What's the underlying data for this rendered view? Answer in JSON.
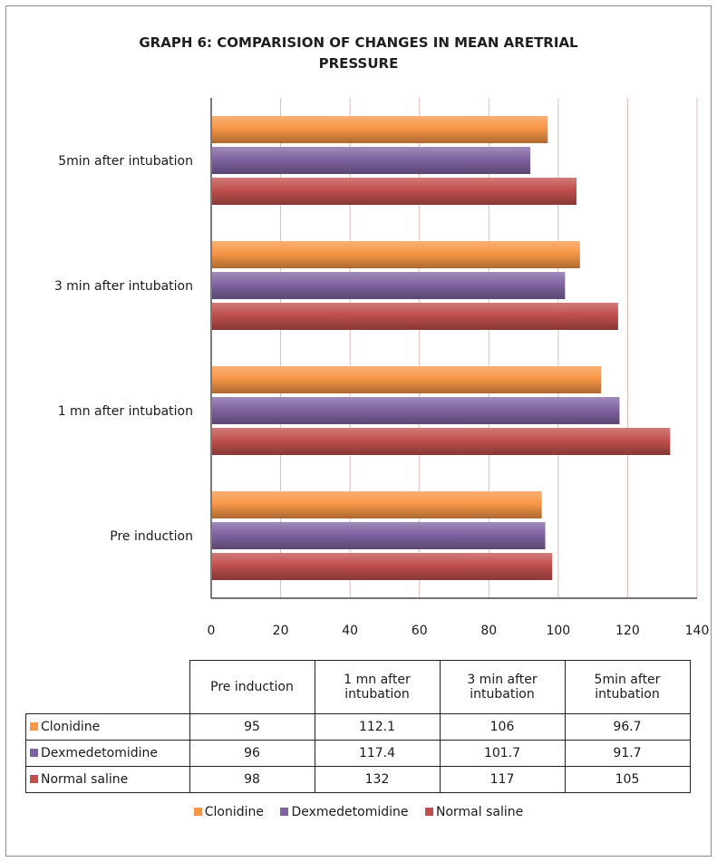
{
  "title_line1": "GRAPH 6: COMPARISION OF CHANGES IN MEAN ARETRIAL",
  "title_line2": "PRESSURE",
  "chart_data": {
    "type": "bar",
    "orientation": "horizontal",
    "categories": [
      "Pre induction",
      "1 mn after intubation",
      "3 min after intubation",
      "5min after intubation"
    ],
    "category_table_labels": [
      "Pre induction",
      "1 mn after\nintubation",
      "3 min after\nintubation",
      "5min after\nintubation"
    ],
    "series": [
      {
        "name": "Clonidine",
        "color": "#f79646",
        "values": [
          95,
          112.1,
          106,
          96.7
        ]
      },
      {
        "name": "Dexmedetomidine",
        "color": "#8064a2",
        "values": [
          96,
          117.4,
          101.7,
          91.7
        ]
      },
      {
        "name": "Normal saline",
        "color": "#c0504d",
        "values": [
          98,
          132,
          117,
          105
        ]
      }
    ],
    "xlim": [
      0,
      140
    ],
    "xticks": [
      "0",
      "20",
      "40",
      "60",
      "80",
      "100",
      "120",
      "140"
    ],
    "grid": "vertical",
    "legend": "bottom",
    "data_table": true
  },
  "table_values": [
    [
      "95",
      "112.1",
      "106",
      "96.7"
    ],
    [
      "96",
      "117.4",
      "101.7",
      "91.7"
    ],
    [
      "98",
      "132",
      "117",
      "105"
    ]
  ]
}
